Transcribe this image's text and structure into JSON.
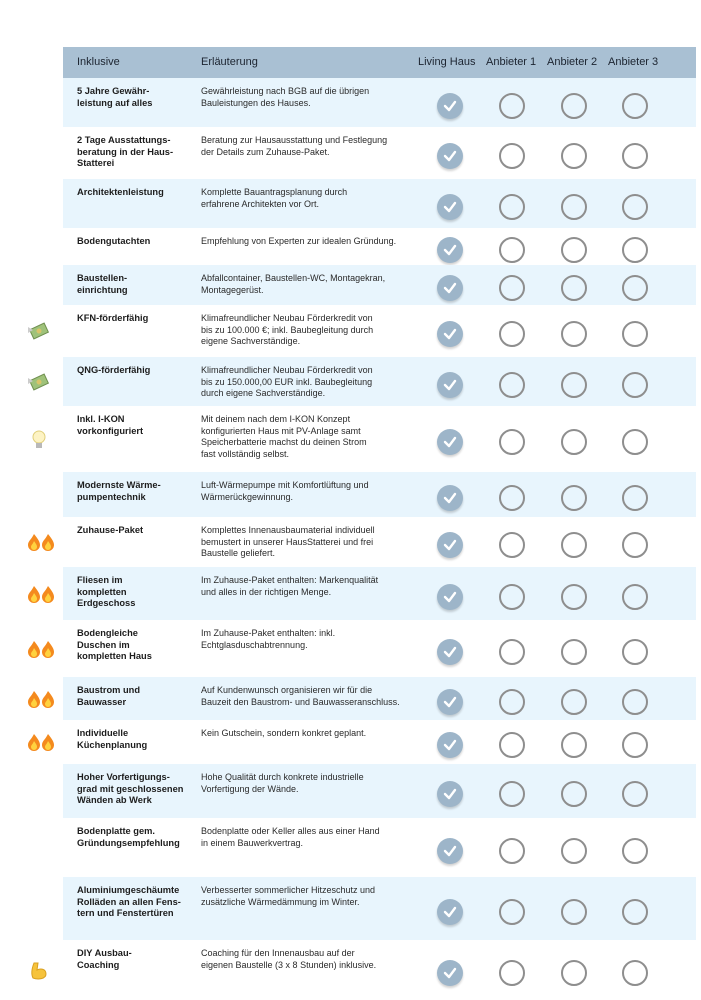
{
  "header": {
    "col_feature": "Inklusive",
    "col_description": "Erläuterung",
    "providers": [
      "Living Haus",
      "Anbieter 1",
      "Anbieter 2",
      "Anbieter 3"
    ]
  },
  "colors": {
    "header_bg": "#a9c0d3",
    "row_alt_bg": "#e8f5fd",
    "check_fill": "#9db5c9"
  },
  "rows": [
    {
      "label": "5 Jahre Gewähr-\nleistung auf alles",
      "description": "Gewährleistung nach BGB auf die übrigen\nBauleistungen des Hauses.",
      "icon": "",
      "checks": [
        true,
        false,
        false,
        false
      ]
    },
    {
      "label": "2 Tage Ausstattungs-\nberatung in der Haus-\nStatterei",
      "description": "Beratung zur Hausausstattung und Festlegung\nder Details zum Zuhause-Paket.",
      "icon": "",
      "checks": [
        true,
        false,
        false,
        false
      ]
    },
    {
      "label": "Architektenleistung",
      "description": "Komplette Bauantragsplanung durch\nerfahrene Architekten vor Ort.",
      "icon": "",
      "checks": [
        true,
        false,
        false,
        false
      ]
    },
    {
      "label": "Bodengutachten",
      "description": "Empfehlung von Experten zur idealen Gründung.",
      "icon": "",
      "checks": [
        true,
        false,
        false,
        false
      ]
    },
    {
      "label": "Baustellen-\neinrichtung",
      "description": "Abfallcontainer, Baustellen-WC, Montagekran,\nMontagegerüst.",
      "icon": "",
      "checks": [
        true,
        false,
        false,
        false
      ]
    },
    {
      "label": "KFN-förderfähig",
      "description": "Klimafreundlicher Neubau Förderkredit von\nbis zu 100.000 €; inkl. Baubegleitung durch\neigene Sachverständige.",
      "icon": "money-with-wings",
      "checks": [
        true,
        false,
        false,
        false
      ]
    },
    {
      "label": "QNG-förderfähig",
      "description": "Klimafreundlicher Neubau Förderkredit von\nbis zu 150.000,00 EUR inkl. Baubegleitung\ndurch eigene Sachverständige.",
      "icon": "money-with-wings",
      "checks": [
        true,
        false,
        false,
        false
      ]
    },
    {
      "label": "Inkl. I-KON\nvorkonfiguriert",
      "description": "Mit deinem nach dem I-KON Konzept\nkonfigurierten Haus mit PV-Anlage samt\nSpeicherbatterie machst du deinen Strom\nfast vollständig selbst.",
      "icon": "light-bulb",
      "checks": [
        true,
        false,
        false,
        false
      ]
    },
    {
      "label": "Modernste Wärme-\npumpentechnik",
      "description": "Luft-Wärmepumpe mit Komfortlüftung und\nWärmerückgewinnung.",
      "icon": "",
      "checks": [
        true,
        false,
        false,
        false
      ]
    },
    {
      "label": "Zuhause-Paket",
      "description": "Komplettes Innenausbaumaterial individuell\nbemustert in unserer HausStatterei und frei\nBaustelle geliefert.",
      "icon": "fire",
      "checks": [
        true,
        false,
        false,
        false
      ]
    },
    {
      "label": "Fliesen im\nkompletten\nErdgeschoss",
      "description": "Im Zuhause-Paket enthalten: Markenqualität\nund alles in der richtigen Menge.",
      "icon": "fire",
      "checks": [
        true,
        false,
        false,
        false
      ]
    },
    {
      "label": "Bodengleiche\nDuschen im\nkompletten Haus",
      "description": "Im Zuhause-Paket enthalten: inkl.\nEchtglasduschabtrennung.",
      "icon": "fire",
      "checks": [
        true,
        false,
        false,
        false
      ]
    },
    {
      "label": "Baustrom und\nBauwasser",
      "description": "Auf Kundenwunsch organisieren wir für die\nBauzeit den Baustrom- und Bauwasseranschluss.",
      "icon": "fire",
      "checks": [
        true,
        false,
        false,
        false
      ]
    },
    {
      "label": "Individuelle\nKüchenplanung",
      "description": "Kein Gutschein, sondern konkret geplant.",
      "icon": "fire",
      "checks": [
        true,
        false,
        false,
        false
      ]
    },
    {
      "label": "Hoher Vorfertigungs-\ngrad mit geschlossenen\nWänden ab Werk",
      "description": "Hohe Qualität durch konkrete industrielle\nVorfertigung der Wände.",
      "icon": "",
      "checks": [
        true,
        false,
        false,
        false
      ]
    },
    {
      "label": "Bodenplatte gem.\nGründungsempfehlung",
      "description": "Bodenplatte oder Keller alles aus einer Hand\nin einem Bauwerkvertrag.",
      "icon": "",
      "checks": [
        true,
        false,
        false,
        false
      ]
    },
    {
      "label": "Aluminiumgeschäumte\nRolläden an allen Fens-\ntern und Fenstertüren",
      "description": "Verbesserter sommerlicher Hitzeschutz und\nzusätzliche Wärmedämmung im Winter.",
      "icon": "",
      "checks": [
        true,
        false,
        false,
        false
      ]
    },
    {
      "label": "DIY Ausbau-\nCoaching",
      "description": "Coaching für den Innenausbau auf der\neigenen Baustelle (3 x 8 Stunden) inklusive.",
      "icon": "flexed-biceps",
      "checks": [
        true,
        false,
        false,
        false
      ]
    }
  ]
}
